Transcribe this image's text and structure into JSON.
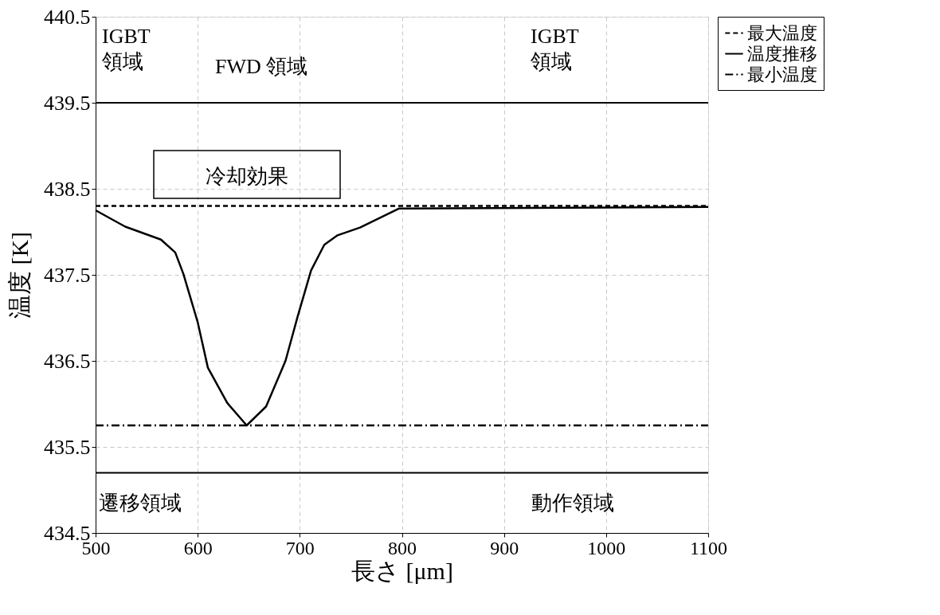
{
  "chart_data": {
    "type": "line",
    "xlabel": "長さ [μm]",
    "ylabel": "温度 [K]",
    "xlim": [
      500,
      1100
    ],
    "xticks": [
      500,
      600,
      700,
      800,
      900,
      1000,
      1100
    ],
    "ylim": [
      434.5,
      440.5
    ],
    "yticks": [
      434.5,
      435.5,
      436.5,
      437.5,
      438.5,
      439.5,
      440.5
    ],
    "grid": true,
    "legend": "right",
    "marker": "none",
    "series": [
      {
        "name": "最大温度",
        "color": "#000000",
        "line_style": "dashed",
        "x": [
          500,
          1100
        ],
        "values": [
          438.3,
          438.3
        ]
      },
      {
        "name": "温度推移",
        "color": "#000000",
        "line_style": "solid",
        "x": [
          500,
          529,
          564,
          578,
          586,
          600,
          610,
          629,
          648,
          667,
          686,
          698,
          711,
          724,
          737,
          759,
          797,
          1100
        ],
        "values": [
          438.25,
          438.06,
          437.91,
          437.76,
          437.51,
          436.95,
          436.42,
          436.01,
          435.75,
          435.97,
          436.5,
          437.02,
          437.55,
          437.85,
          437.96,
          438.05,
          438.27,
          438.29
        ]
      },
      {
        "name": "最小温度",
        "color": "#000000",
        "line_style": "dotted",
        "x": [
          500,
          1100
        ],
        "values": [
          435.75,
          435.75
        ]
      }
    ],
    "ref_lines": [
      {
        "axis": "y",
        "value": 439.5
      },
      {
        "axis": "y",
        "value": 435.2
      }
    ],
    "annotations": [
      "IGBT\n領域",
      "FWD 領域",
      "IGBT\n領域",
      "冷却効果",
      "遷移領域",
      "動作領域"
    ]
  }
}
